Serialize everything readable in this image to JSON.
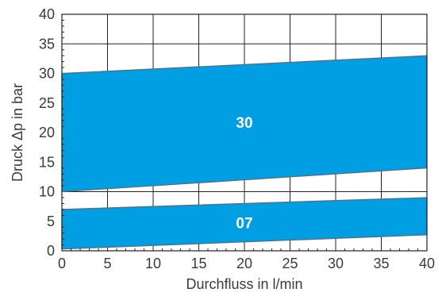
{
  "chart_data": {
    "type": "area",
    "title": "",
    "xlabel": "Durchfluss in l/min",
    "ylabel": "Druck Δp in bar",
    "xlim": [
      0,
      40
    ],
    "ylim": [
      0,
      40
    ],
    "x_ticks": [
      0,
      5,
      10,
      15,
      20,
      25,
      30,
      35,
      40
    ],
    "y_ticks": [
      0,
      5,
      10,
      15,
      20,
      25,
      30,
      35,
      40
    ],
    "grid": true,
    "band_color": "#009fe3",
    "series": [
      {
        "name": "30",
        "x": [
          0,
          40
        ],
        "lower": [
          10,
          14
        ],
        "upper": [
          30,
          33
        ]
      },
      {
        "name": "07",
        "x": [
          0,
          40
        ],
        "lower": [
          0.3,
          2.7
        ],
        "upper": [
          7,
          9
        ]
      }
    ]
  }
}
